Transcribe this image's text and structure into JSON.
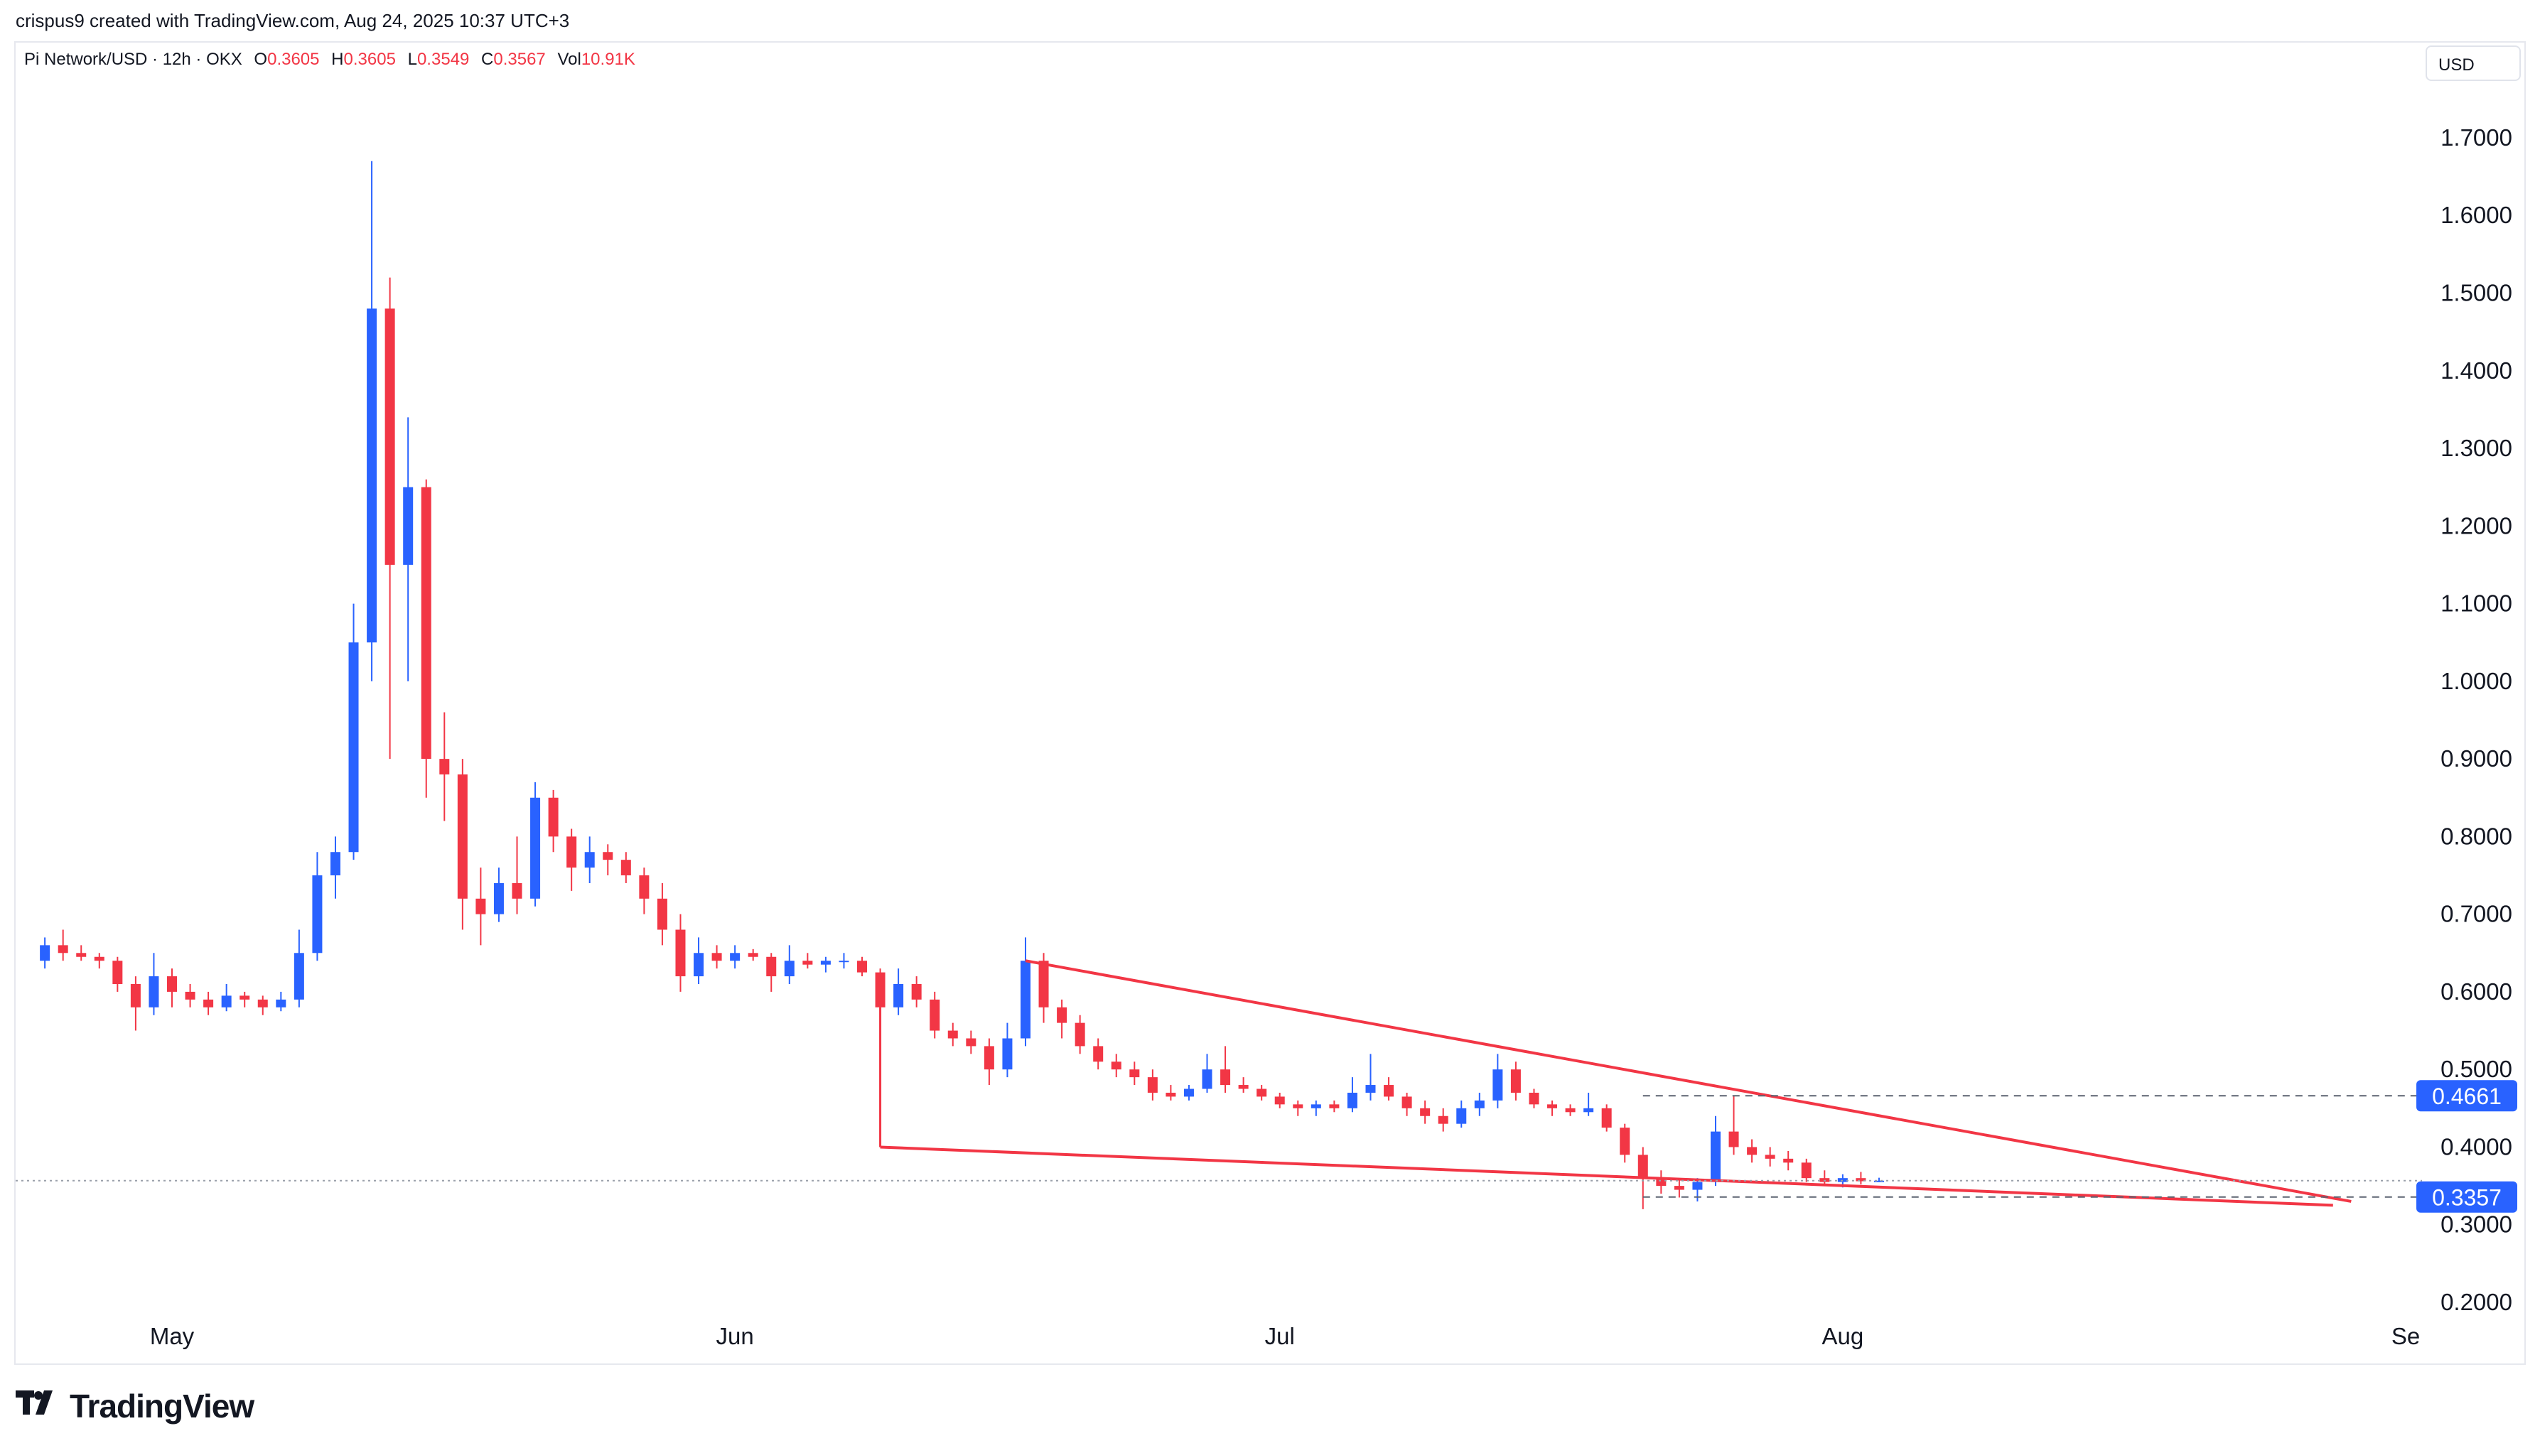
{
  "header": {
    "credit": "crispus9 created with TradingView.com, Aug 24, 2025 10:37 UTC+3"
  },
  "legend": {
    "symbol": "Pi Network/USD · 12h · OKX",
    "open_label": "O",
    "open": "0.3605",
    "high_label": "H",
    "high": "0.3605",
    "low_label": "L",
    "low": "0.3549",
    "close_label": "C",
    "close": "0.3567",
    "vol_label": "Vol",
    "vol": "10.91K"
  },
  "currency_button": "USD",
  "brand": {
    "name": "TradingView"
  },
  "colors": {
    "up": "#2962ff",
    "down": "#f23645",
    "trendline": "#f23645",
    "grid": "#e6e8ee"
  },
  "chart_data": {
    "type": "candlestick",
    "interval": "12h",
    "y_axis": {
      "ticks": [
        "0.2000",
        "0.3000",
        "0.4000",
        "0.5000",
        "0.6000",
        "0.7000",
        "0.8000",
        "0.9000",
        "1.0000",
        "1.1000",
        "1.2000",
        "1.3000",
        "1.4000",
        "1.5000",
        "1.6000",
        "1.7000"
      ],
      "ylim": [
        0.2,
        1.73
      ]
    },
    "x_axis": {
      "labels": [
        "May",
        "Jun",
        "Jul",
        "Aug",
        "Se"
      ],
      "dates": [
        "2025-05-01",
        "2025-06-01",
        "2025-07-01",
        "2025-08-01",
        "2025-09-01"
      ]
    },
    "price_labels": [
      {
        "value": 0.4661,
        "text": "0.4661",
        "style": "resistance-dashed"
      },
      {
        "value": 0.3357,
        "text": "0.3357",
        "style": "support-dashed"
      }
    ],
    "last_price": 0.3567,
    "candles_ohlc_by_date": [
      [
        "2025-04-24",
        0.64,
        0.67,
        0.63,
        0.66
      ],
      [
        "2025-04-25",
        0.66,
        0.68,
        0.64,
        0.65
      ],
      [
        "2025-04-26",
        0.65,
        0.66,
        0.64,
        0.645
      ],
      [
        "2025-04-27",
        0.645,
        0.65,
        0.63,
        0.64
      ],
      [
        "2025-04-28",
        0.64,
        0.645,
        0.6,
        0.61
      ],
      [
        "2025-04-29",
        0.61,
        0.62,
        0.55,
        0.58
      ],
      [
        "2025-04-30",
        0.58,
        0.65,
        0.57,
        0.62
      ],
      [
        "2025-05-01",
        0.62,
        0.63,
        0.58,
        0.6
      ],
      [
        "2025-05-02",
        0.6,
        0.61,
        0.58,
        0.59
      ],
      [
        "2025-05-03",
        0.59,
        0.6,
        0.57,
        0.58
      ],
      [
        "2025-05-04",
        0.58,
        0.61,
        0.575,
        0.595
      ],
      [
        "2025-05-05",
        0.595,
        0.6,
        0.58,
        0.59
      ],
      [
        "2025-05-06",
        0.59,
        0.595,
        0.57,
        0.58
      ],
      [
        "2025-05-07",
        0.58,
        0.6,
        0.575,
        0.59
      ],
      [
        "2025-05-08",
        0.59,
        0.68,
        0.58,
        0.65
      ],
      [
        "2025-05-09",
        0.65,
        0.78,
        0.64,
        0.75
      ],
      [
        "2025-05-10",
        0.75,
        0.8,
        0.72,
        0.78
      ],
      [
        "2025-05-11",
        0.78,
        1.1,
        0.77,
        1.05
      ],
      [
        "2025-05-12",
        1.05,
        1.67,
        1.0,
        1.48
      ],
      [
        "2025-05-13",
        1.48,
        1.52,
        0.9,
        1.15
      ],
      [
        "2025-05-14",
        1.15,
        1.34,
        1.0,
        1.25
      ],
      [
        "2025-05-15",
        1.25,
        1.26,
        0.85,
        0.9
      ],
      [
        "2025-05-16",
        0.9,
        0.96,
        0.82,
        0.88
      ],
      [
        "2025-05-17",
        0.88,
        0.9,
        0.68,
        0.72
      ],
      [
        "2025-05-18",
        0.72,
        0.76,
        0.66,
        0.7
      ],
      [
        "2025-05-19",
        0.7,
        0.76,
        0.69,
        0.74
      ],
      [
        "2025-05-20",
        0.74,
        0.8,
        0.7,
        0.72
      ],
      [
        "2025-05-21",
        0.72,
        0.87,
        0.71,
        0.85
      ],
      [
        "2025-05-22",
        0.85,
        0.86,
        0.78,
        0.8
      ],
      [
        "2025-05-23",
        0.8,
        0.81,
        0.73,
        0.76
      ],
      [
        "2025-05-24",
        0.76,
        0.8,
        0.74,
        0.78
      ],
      [
        "2025-05-25",
        0.78,
        0.79,
        0.75,
        0.77
      ],
      [
        "2025-05-26",
        0.77,
        0.78,
        0.74,
        0.75
      ],
      [
        "2025-05-27",
        0.75,
        0.76,
        0.7,
        0.72
      ],
      [
        "2025-05-28",
        0.72,
        0.74,
        0.66,
        0.68
      ],
      [
        "2025-05-29",
        0.68,
        0.7,
        0.6,
        0.62
      ],
      [
        "2025-05-30",
        0.62,
        0.67,
        0.61,
        0.65
      ],
      [
        "2025-05-31",
        0.65,
        0.66,
        0.63,
        0.64
      ],
      [
        "2025-06-01",
        0.64,
        0.66,
        0.63,
        0.65
      ],
      [
        "2025-06-02",
        0.65,
        0.655,
        0.64,
        0.645
      ],
      [
        "2025-06-03",
        0.645,
        0.65,
        0.6,
        0.62
      ],
      [
        "2025-06-04",
        0.62,
        0.66,
        0.61,
        0.64
      ],
      [
        "2025-06-05",
        0.64,
        0.65,
        0.63,
        0.635
      ],
      [
        "2025-06-06",
        0.635,
        0.645,
        0.625,
        0.64
      ],
      [
        "2025-06-07",
        0.64,
        0.65,
        0.63,
        0.64
      ],
      [
        "2025-06-08",
        0.64,
        0.645,
        0.62,
        0.625
      ],
      [
        "2025-06-09",
        0.625,
        0.63,
        0.53,
        0.58
      ],
      [
        "2025-06-10",
        0.58,
        0.63,
        0.57,
        0.61
      ],
      [
        "2025-06-11",
        0.61,
        0.62,
        0.58,
        0.59
      ],
      [
        "2025-06-12",
        0.59,
        0.6,
        0.54,
        0.55
      ],
      [
        "2025-06-13",
        0.55,
        0.56,
        0.53,
        0.54
      ],
      [
        "2025-06-14",
        0.54,
        0.55,
        0.52,
        0.53
      ],
      [
        "2025-06-15",
        0.53,
        0.54,
        0.48,
        0.5
      ],
      [
        "2025-06-16",
        0.5,
        0.56,
        0.49,
        0.54
      ],
      [
        "2025-06-17",
        0.54,
        0.67,
        0.53,
        0.64
      ],
      [
        "2025-06-18",
        0.64,
        0.65,
        0.56,
        0.58
      ],
      [
        "2025-06-19",
        0.58,
        0.59,
        0.54,
        0.56
      ],
      [
        "2025-06-20",
        0.56,
        0.57,
        0.52,
        0.53
      ],
      [
        "2025-06-21",
        0.53,
        0.54,
        0.5,
        0.51
      ],
      [
        "2025-06-22",
        0.51,
        0.52,
        0.49,
        0.5
      ],
      [
        "2025-06-23",
        0.5,
        0.51,
        0.48,
        0.49
      ],
      [
        "2025-06-24",
        0.49,
        0.5,
        0.46,
        0.47
      ],
      [
        "2025-06-25",
        0.47,
        0.48,
        0.46,
        0.465
      ],
      [
        "2025-06-26",
        0.465,
        0.48,
        0.46,
        0.475
      ],
      [
        "2025-06-27",
        0.475,
        0.52,
        0.47,
        0.5
      ],
      [
        "2025-06-28",
        0.5,
        0.53,
        0.47,
        0.48
      ],
      [
        "2025-06-29",
        0.48,
        0.49,
        0.47,
        0.475
      ],
      [
        "2025-06-30",
        0.475,
        0.48,
        0.46,
        0.465
      ],
      [
        "2025-07-01",
        0.465,
        0.47,
        0.45,
        0.455
      ],
      [
        "2025-07-02",
        0.455,
        0.46,
        0.44,
        0.45
      ],
      [
        "2025-07-03",
        0.45,
        0.46,
        0.44,
        0.455
      ],
      [
        "2025-07-04",
        0.455,
        0.46,
        0.445,
        0.45
      ],
      [
        "2025-07-05",
        0.45,
        0.49,
        0.445,
        0.47
      ],
      [
        "2025-07-06",
        0.47,
        0.52,
        0.46,
        0.48
      ],
      [
        "2025-07-07",
        0.48,
        0.49,
        0.46,
        0.465
      ],
      [
        "2025-07-08",
        0.465,
        0.47,
        0.44,
        0.45
      ],
      [
        "2025-07-09",
        0.45,
        0.46,
        0.43,
        0.44
      ],
      [
        "2025-07-10",
        0.44,
        0.45,
        0.42,
        0.43
      ],
      [
        "2025-07-11",
        0.43,
        0.46,
        0.425,
        0.45
      ],
      [
        "2025-07-12",
        0.45,
        0.47,
        0.44,
        0.46
      ],
      [
        "2025-07-13",
        0.46,
        0.52,
        0.45,
        0.5
      ],
      [
        "2025-07-14",
        0.5,
        0.51,
        0.46,
        0.47
      ],
      [
        "2025-07-15",
        0.47,
        0.475,
        0.45,
        0.455
      ],
      [
        "2025-07-16",
        0.455,
        0.46,
        0.44,
        0.45
      ],
      [
        "2025-07-17",
        0.45,
        0.455,
        0.44,
        0.445
      ],
      [
        "2025-07-18",
        0.445,
        0.47,
        0.44,
        0.45
      ],
      [
        "2025-07-19",
        0.45,
        0.455,
        0.42,
        0.425
      ],
      [
        "2025-07-20",
        0.425,
        0.43,
        0.38,
        0.39
      ],
      [
        "2025-07-21",
        0.39,
        0.4,
        0.32,
        0.36
      ],
      [
        "2025-07-22",
        0.36,
        0.37,
        0.34,
        0.35
      ],
      [
        "2025-07-23",
        0.35,
        0.36,
        0.335,
        0.345
      ],
      [
        "2025-07-24",
        0.345,
        0.36,
        0.33,
        0.355
      ],
      [
        "2025-07-25",
        0.355,
        0.44,
        0.35,
        0.42
      ],
      [
        "2025-07-26",
        0.42,
        0.466,
        0.39,
        0.4
      ],
      [
        "2025-07-27",
        0.4,
        0.41,
        0.38,
        0.39
      ],
      [
        "2025-07-28",
        0.39,
        0.4,
        0.375,
        0.385
      ],
      [
        "2025-07-29",
        0.385,
        0.395,
        0.37,
        0.38
      ],
      [
        "2025-07-30",
        0.38,
        0.385,
        0.355,
        0.36
      ],
      [
        "2025-07-31",
        0.36,
        0.37,
        0.35,
        0.355
      ],
      [
        "2025-08-01",
        0.355,
        0.365,
        0.348,
        0.36
      ],
      [
        "2025-08-02",
        0.36,
        0.368,
        0.352,
        0.356
      ],
      [
        "2025-08-03",
        0.356,
        0.3605,
        0.3549,
        0.3567
      ]
    ]
  }
}
